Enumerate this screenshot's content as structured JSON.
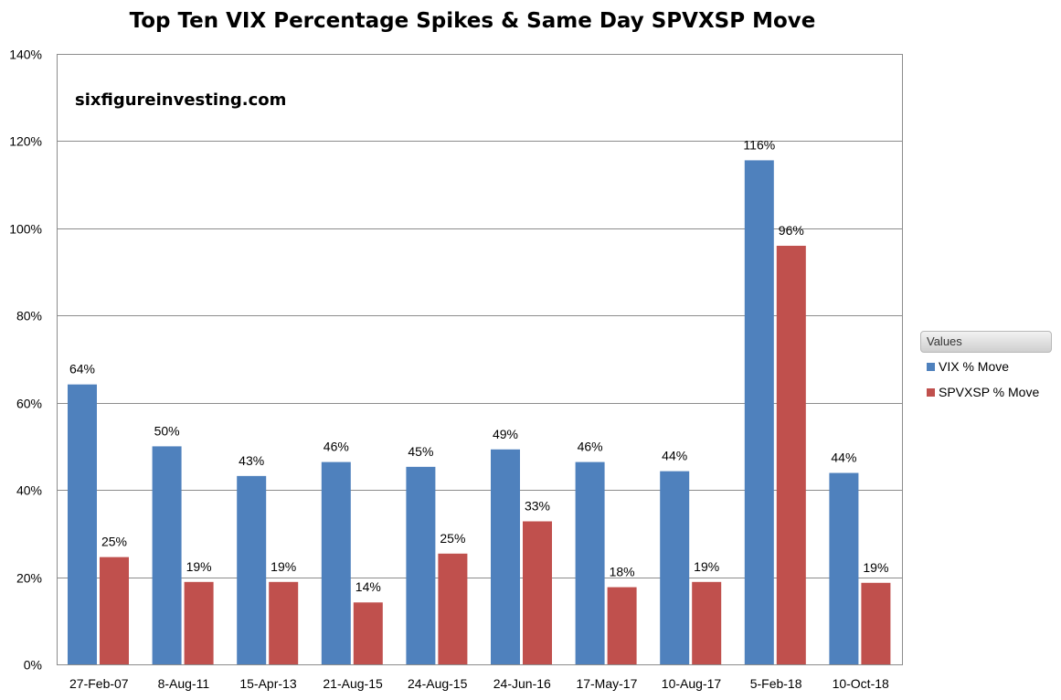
{
  "chart_data": {
    "type": "bar",
    "title": "Top Ten VIX Percentage Spikes & Same Day SPVXSP Move",
    "annotation": "sixfigureinvesting.com",
    "categories": [
      "27-Feb-07",
      "8-Aug-11",
      "15-Apr-13",
      "21-Aug-15",
      "24-Aug-15",
      "24-Jun-16",
      "17-May-17",
      "10-Aug-17",
      "5-Feb-18",
      "10-Oct-18"
    ],
    "series": [
      {
        "name": "VIX % Move",
        "color": "#4f81bd",
        "values": [
          64.2,
          50.0,
          43.2,
          46.4,
          45.3,
          49.3,
          46.4,
          44.3,
          115.6,
          43.9
        ],
        "labels": [
          "64%",
          "50%",
          "43%",
          "46%",
          "45%",
          "49%",
          "46%",
          "44%",
          "116%",
          "44%"
        ]
      },
      {
        "name": "SPVXSP % Move",
        "color": "#c0504d",
        "values": [
          24.6,
          18.9,
          18.9,
          14.2,
          25.4,
          32.8,
          17.7,
          18.9,
          96.0,
          18.7
        ],
        "labels": [
          "25%",
          "19%",
          "19%",
          "14%",
          "25%",
          "33%",
          "18%",
          "19%",
          "96%",
          "19%"
        ]
      }
    ],
    "ylim": [
      0,
      140
    ],
    "yticks": [
      0,
      20,
      40,
      60,
      80,
      100,
      120,
      140
    ],
    "ytick_labels": [
      "0%",
      "20%",
      "40%",
      "60%",
      "80%",
      "100%",
      "120%",
      "140%"
    ],
    "xlabel": "",
    "ylabel": "",
    "grid": true,
    "legend": {
      "title": "Values",
      "placement": "right"
    }
  }
}
